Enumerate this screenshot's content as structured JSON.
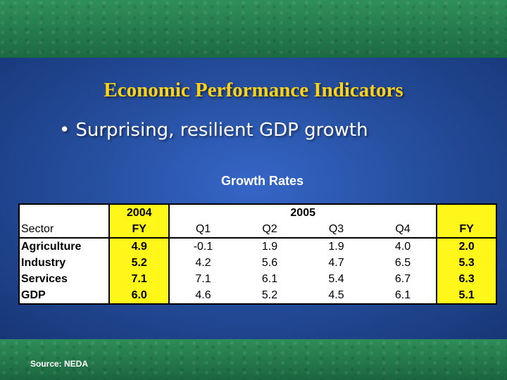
{
  "slide": {
    "title": "Economic Performance Indicators",
    "bullet": "Surprising, resilient GDP growth",
    "table_title": "Growth Rates",
    "source": "Source:  NEDA"
  },
  "table": {
    "header_year_2004": "2004",
    "header_year_2005": "2005",
    "header_sector": "Sector",
    "header_fy_2004": "FY",
    "header_q1": "Q1",
    "header_q2": "Q2",
    "header_q3": "Q3",
    "header_q4": "Q4",
    "header_fy_2005": "FY",
    "rows": [
      {
        "sector": "Agriculture",
        "fy2004": "4.9",
        "q1": "-0.1",
        "q2": "1.9",
        "q3": "1.9",
        "q4": "4.0",
        "fy2005": "2.0"
      },
      {
        "sector": "Industry",
        "fy2004": "5.2",
        "q1": "4.2",
        "q2": "5.6",
        "q3": "4.7",
        "q4": "6.5",
        "fy2005": "5.3"
      },
      {
        "sector": "Services",
        "fy2004": "7.1",
        "q1": "7.1",
        "q2": "6.1",
        "q3": "5.4",
        "q4": "6.7",
        "fy2005": "6.3"
      },
      {
        "sector": "GDP",
        "fy2004": "6.0",
        "q1": "4.6",
        "q2": "5.2",
        "q3": "4.5",
        "q4": "6.1",
        "fy2005": "5.1"
      }
    ]
  },
  "colors": {
    "title": "#ffd21a",
    "highlight_column": "#fff71a",
    "background_blue": "#264f9f",
    "band_green": "#257a4d"
  }
}
